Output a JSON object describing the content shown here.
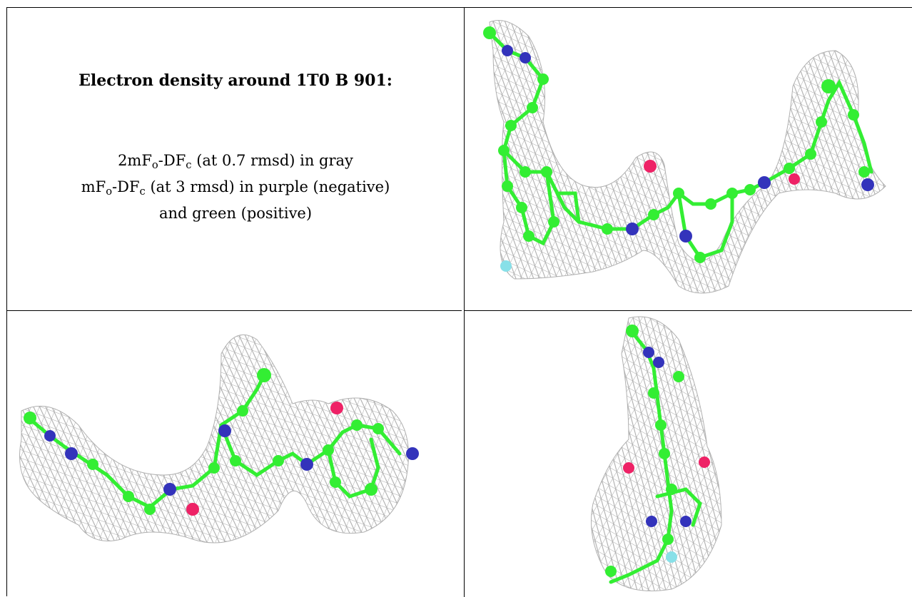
{
  "caption": {
    "title": "Electron density around 1T0 B 901:",
    "line1_pre": "2mF",
    "line1_sub1": "o",
    "line1_mid": "-DF",
    "line1_sub2": "c",
    "line1_post": " (at 0.7 rmsd) in gray",
    "line2_pre": "mF",
    "line2_sub1": "o",
    "line2_mid": "-DF",
    "line2_sub2": "c",
    "line2_post": " (at 3 rmsd) in purple (negative)",
    "line3": "and green (positive)"
  },
  "colors": {
    "mesh": "#a8a8a8",
    "carbon": "#33ee33",
    "nitrogen": "#3333bb",
    "oxygen": "#ee2266",
    "fluorine": "#88e0e8"
  },
  "panels": [
    {
      "name": "view-top-right",
      "content": "molecular-density-render"
    },
    {
      "name": "view-bottom-left",
      "content": "molecular-density-render"
    },
    {
      "name": "view-bottom-right",
      "content": "molecular-density-render"
    }
  ]
}
